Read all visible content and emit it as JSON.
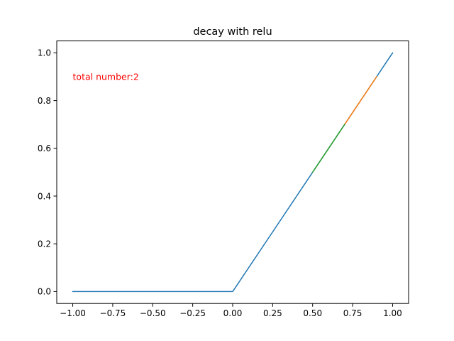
{
  "chart_data": {
    "type": "line",
    "title": "decay with relu",
    "xlabel": "",
    "ylabel": "",
    "xlim": [
      -1.1,
      1.1
    ],
    "ylim": [
      -0.05,
      1.05
    ],
    "x_ticks": [
      -1.0,
      -0.75,
      -0.5,
      -0.25,
      0.0,
      0.25,
      0.5,
      0.75,
      1.0
    ],
    "x_tick_labels": [
      "−1.00",
      "−0.75",
      "−0.50",
      "−0.25",
      "0.00",
      "0.25",
      "0.50",
      "0.75",
      "1.00"
    ],
    "y_ticks": [
      0.0,
      0.2,
      0.4,
      0.6,
      0.8,
      1.0
    ],
    "y_tick_labels": [
      "0.0",
      "0.2",
      "0.4",
      "0.6",
      "0.8",
      "1.0"
    ],
    "grid": false,
    "legend": "none",
    "series": [
      {
        "color": "#1f77b4",
        "points": [
          [
            -1.0,
            0.0
          ],
          [
            0.0,
            0.0
          ],
          [
            1.0,
            1.0
          ]
        ]
      },
      {
        "color": "#ff7f0e",
        "points": [
          [
            0.7,
            0.7
          ],
          [
            0.9,
            0.9
          ]
        ]
      },
      {
        "color": "#2ca02c",
        "points": [
          [
            0.5,
            0.5
          ],
          [
            0.7,
            0.7
          ]
        ]
      }
    ],
    "annotations": [
      {
        "text": "total number:2",
        "x": -1.0,
        "y": 0.9,
        "color": "#ff0000"
      }
    ]
  }
}
